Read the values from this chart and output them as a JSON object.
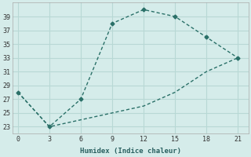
{
  "upper_x": [
    0,
    3,
    6,
    9,
    12,
    15,
    18,
    21
  ],
  "upper_y": [
    28,
    23,
    27,
    38,
    40,
    39,
    36,
    33
  ],
  "lower_x": [
    0,
    3,
    6,
    9,
    12,
    15,
    18,
    21
  ],
  "lower_y": [
    28,
    23,
    24,
    25,
    26,
    28,
    31,
    33
  ],
  "background_color": "#d5ecea",
  "grid_color": "#b8d8d5",
  "line_color": "#2a7068",
  "xlabel": "Humidex (Indice chaleur)",
  "xlim": [
    -0.5,
    22
  ],
  "ylim": [
    22,
    41
  ],
  "xticks": [
    0,
    3,
    6,
    9,
    12,
    15,
    18,
    21
  ],
  "yticks": [
    23,
    25,
    27,
    29,
    31,
    33,
    35,
    37,
    39
  ]
}
